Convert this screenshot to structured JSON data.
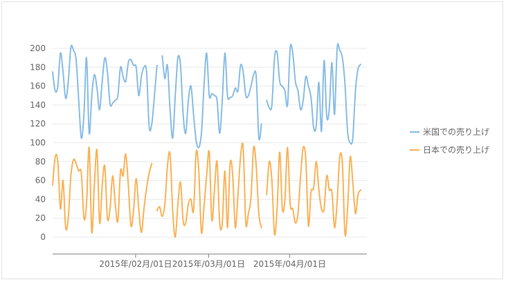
{
  "chart_data": {
    "type": "line",
    "x_start": "2015-01-01",
    "x_ticks": [
      "2015年/02月/01日",
      "2015年/03月/01日",
      "2015年/04月/01日"
    ],
    "ylim": [
      -20,
      200
    ],
    "y_ticks": [
      0,
      20,
      40,
      60,
      80,
      100,
      120,
      140,
      160,
      180,
      200
    ],
    "grid": true,
    "legend_position": "right",
    "series": [
      {
        "name": "米国での売り上げ",
        "color": "#88bde6",
        "values": [
          175,
          155,
          160,
          195,
          175,
          147,
          165,
          201,
          198,
          188,
          145,
          105,
          130,
          190,
          110,
          150,
          172,
          158,
          135,
          165,
          190,
          175,
          141,
          142,
          145,
          150,
          180,
          170,
          165,
          185,
          188,
          182,
          180,
          150,
          170,
          180,
          175,
          117,
          120,
          150,
          182,
          null,
          192,
          168,
          182,
          135,
          105,
          150,
          190,
          182,
          130,
          110,
          145,
          160,
          130,
          102,
          95,
          110,
          160,
          195,
          150,
          152,
          150,
          145,
          110,
          145,
          195,
          150,
          148,
          150,
          158,
          155,
          182,
          175,
          150,
          150,
          160,
          172,
          170,
          105,
          120,
          null,
          145,
          137,
          140,
          190,
          195,
          165,
          160,
          155,
          140,
          200,
          195,
          165,
          155,
          135,
          145,
          170,
          160,
          148,
          116,
          118,
          164,
          112,
          187,
          128,
          136,
          185,
          130,
          200,
          198,
          190,
          162,
          112,
          100,
          105,
          155,
          178,
          183
        ]
      },
      {
        "name": "日本での売り上げ",
        "color": "#fbb258",
        "values": [
          55,
          85,
          80,
          30,
          60,
          10,
          20,
          65,
          82,
          78,
          70,
          68,
          20,
          35,
          95,
          5,
          55,
          92,
          15,
          55,
          75,
          20,
          30,
          65,
          35,
          17,
          70,
          65,
          88,
          55,
          12,
          28,
          62,
          30,
          5,
          30,
          52,
          68,
          78,
          null,
          28,
          32,
          22,
          35,
          75,
          88,
          28,
          0,
          35,
          58,
          17,
          15,
          35,
          40,
          28,
          90,
          70,
          5,
          32,
          65,
          90,
          18,
          50,
          80,
          15,
          15,
          70,
          10,
          78,
          65,
          10,
          45,
          85,
          95,
          15,
          25,
          42,
          95,
          75,
          25,
          10,
          null,
          45,
          80,
          60,
          3,
          30,
          90,
          30,
          40,
          95,
          35,
          30,
          15,
          25,
          65,
          95,
          82,
          12,
          48,
          52,
          80,
          50,
          30,
          30,
          65,
          50,
          48,
          10,
          38,
          85,
          78,
          3,
          30,
          85,
          58,
          25,
          45,
          50
        ]
      }
    ]
  }
}
